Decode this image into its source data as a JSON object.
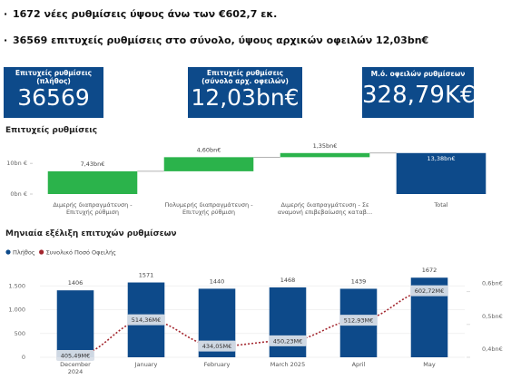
{
  "bullets": [
    "1672 νέες ρυθμίσεις ύψους άνω των €602,7 εκ.",
    "36569 επιτυχείς ρυθμίσεις στο σύνολο, ύψους αρχικών οφειλών  12,03bn€"
  ],
  "kpis": [
    {
      "label": "Επιτυχείς ρυθμίσεις (πλήθος)",
      "value": "36569"
    },
    {
      "label": "Επιτυχείς ρυθμίσεις (σύνολο αρχ. οφειλών)",
      "value": "12,03bn€"
    },
    {
      "label": "Μ.ό. οφειλών ρυθμίσεων",
      "value": "328,79K€"
    }
  ],
  "chart_data": [
    {
      "type": "waterfall",
      "title": "Επιτυχείς ρυθμίσεις",
      "categories": [
        "Διμερής διαπραγμάτευση - Επιτυχής ρύθμιση",
        "Πολυμερής διαπραγμάτευση - Επιτυχής ρύθμιση",
        "Διμερής διαπραγμάτευση - Σε αναμονή επιβεβαίωσης καταβ...",
        "Total"
      ],
      "values": [
        7.43,
        4.6,
        1.35,
        13.38
      ],
      "value_labels": [
        "7,43bn€",
        "4,60bn€",
        "1,35bn€",
        "13,38bn€"
      ],
      "totals": [
        false,
        false,
        false,
        true
      ],
      "colors": [
        "#2bb34b",
        "#2bb34b",
        "#2bb34b",
        "#0d4a8a"
      ],
      "ylim": [
        0,
        14.5
      ],
      "yticks": [
        {
          "value": 0,
          "label": "0bn €"
        },
        {
          "value": 10,
          "label": "10bn €"
        }
      ]
    },
    {
      "type": "combo",
      "title": "Μηνιαία εξέλιξη επιτυχών ρυθμίσεων",
      "categories": [
        "December 2024",
        "January",
        "February",
        "March 2025",
        "April",
        "May"
      ],
      "series": [
        {
          "name": "Πλήθος",
          "color": "#0d4a8a",
          "type": "bar",
          "values": [
            1406,
            1571,
            1440,
            1468,
            1439,
            1672
          ]
        },
        {
          "name": "Συνολικό Ποσό Οφειλής",
          "color": "#a3262e",
          "type": "line",
          "axis": "y2",
          "values": [
            405.49,
            514.36,
            434.05,
            450.23,
            512.93,
            602.72
          ],
          "value_labels": [
            "405,49M€",
            "514,36M€",
            "434,05M€",
            "450,23M€",
            "512,93M€",
            "602,72M€"
          ]
        }
      ],
      "ylim": [
        0,
        2000
      ],
      "yticks": [
        0,
        500,
        {
          "value": 1000,
          "label": "1.000"
        },
        {
          "value": 1500,
          "label": "1.500"
        }
      ],
      "y2lim": [
        400,
        690
      ],
      "y2ticks": [
        {
          "value": 400,
          "label": "0,4bn€"
        },
        {
          "value": 500,
          "label": "0,5bn€"
        },
        {
          "value": 600,
          "label": "0,6bn€"
        }
      ],
      "grid": true
    }
  ]
}
